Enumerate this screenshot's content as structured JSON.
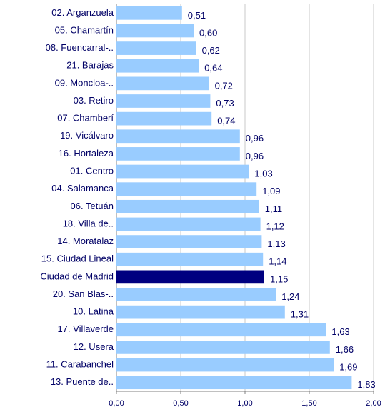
{
  "chart_data": {
    "type": "bar",
    "orientation": "horizontal",
    "categories": [
      "02. Arganzuela",
      "05. Chamartín",
      "08. Fuencarral-..",
      "21. Barajas",
      "09. Moncloa-..",
      "03. Retiro",
      "07. Chamberí",
      "19. Vicálvaro",
      "16. Hortaleza",
      "01. Centro",
      "04. Salamanca",
      "06. Tetuán",
      "18. Villa de..",
      "14. Moratalaz",
      "15. Ciudad Lineal",
      "Ciudad de Madrid",
      "20. San Blas-..",
      "10. Latina",
      "17. Villaverde",
      "12. Usera",
      "11. Carabanchel",
      "13.  Puente de.."
    ],
    "values": [
      0.51,
      0.6,
      0.62,
      0.64,
      0.72,
      0.73,
      0.74,
      0.96,
      0.96,
      1.03,
      1.09,
      1.11,
      1.12,
      1.13,
      1.14,
      1.15,
      1.24,
      1.31,
      1.63,
      1.66,
      1.69,
      1.83
    ],
    "value_labels": [
      "0,51",
      "0,60",
      "0,62",
      "0,64",
      "0,72",
      "0,73",
      "0,74",
      "0,96",
      "0,96",
      "1,03",
      "1,09",
      "1,11",
      "1,12",
      "1,13",
      "1,14",
      "1,15",
      "1,24",
      "1,31",
      "1,63",
      "1,66",
      "1,69",
      "1,83"
    ],
    "colors": [
      "#99ccff",
      "#99ccff",
      "#99ccff",
      "#99ccff",
      "#99ccff",
      "#99ccff",
      "#99ccff",
      "#99ccff",
      "#99ccff",
      "#99ccff",
      "#99ccff",
      "#99ccff",
      "#99ccff",
      "#99ccff",
      "#99ccff",
      "#000080",
      "#99ccff",
      "#99ccff",
      "#99ccff",
      "#99ccff",
      "#99ccff",
      "#99ccff"
    ],
    "xlim": [
      0,
      2
    ],
    "xticks": [
      {
        "value": 0,
        "label": "0,00"
      },
      {
        "value": 0.5,
        "label": "0,50"
      },
      {
        "value": 1,
        "label": "1,00"
      },
      {
        "value": 1.5,
        "label": "1,50"
      },
      {
        "value": 2,
        "label": "2,00"
      }
    ],
    "grid": true
  }
}
